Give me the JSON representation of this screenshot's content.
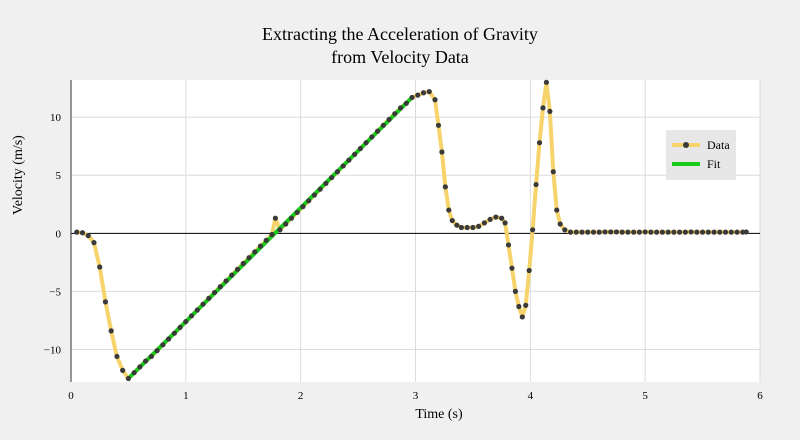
{
  "chart_data": {
    "type": "line",
    "title": [
      "Extracting the Acceleration of Gravity",
      "from Velocity Data"
    ],
    "xlabel": "Time (s)",
    "ylabel": "Velocity (m/s)",
    "xlim": [
      0,
      6
    ],
    "ylim": [
      -12.8,
      13.2
    ],
    "xticks": [
      0,
      1,
      2,
      3,
      4,
      5,
      6
    ],
    "yticks": [
      -10,
      -5,
      0,
      5,
      10
    ],
    "grid": true,
    "legend": {
      "position": "top-right"
    },
    "colors": {
      "background": "#f0f0f0",
      "plot_background": "#ffffff",
      "grid": "#dcdcdc",
      "data_line": "#f7d36b",
      "data_marker": "#3a3a3a",
      "fit_line": "#19cc19",
      "zero_line": "#000000"
    },
    "series": [
      {
        "name": "Data",
        "style": "line+markers",
        "x": [
          0.05,
          0.1,
          0.15,
          0.2,
          0.25,
          0.3,
          0.35,
          0.4,
          0.45,
          0.5,
          0.55,
          0.6,
          0.65,
          0.7,
          0.75,
          0.8,
          0.85,
          0.9,
          0.95,
          1.0,
          1.05,
          1.1,
          1.15,
          1.2,
          1.25,
          1.3,
          1.35,
          1.4,
          1.45,
          1.5,
          1.55,
          1.6,
          1.65,
          1.7,
          1.75,
          1.78,
          1.82,
          1.87,
          1.92,
          1.97,
          2.02,
          2.07,
          2.12,
          2.17,
          2.22,
          2.27,
          2.32,
          2.37,
          2.42,
          2.47,
          2.52,
          2.57,
          2.62,
          2.67,
          2.72,
          2.77,
          2.82,
          2.87,
          2.92,
          2.97,
          3.02,
          3.07,
          3.12,
          3.17,
          3.2,
          3.23,
          3.26,
          3.29,
          3.32,
          3.36,
          3.4,
          3.45,
          3.5,
          3.55,
          3.6,
          3.65,
          3.7,
          3.75,
          3.78,
          3.81,
          3.84,
          3.87,
          3.9,
          3.93,
          3.96,
          3.99,
          4.02,
          4.05,
          4.08,
          4.11,
          4.14,
          4.17,
          4.2,
          4.23,
          4.26,
          4.3,
          4.35,
          4.4,
          4.45,
          4.5,
          4.55,
          4.6,
          4.65,
          4.7,
          4.75,
          4.8,
          4.85,
          4.9,
          4.95,
          5.0,
          5.05,
          5.1,
          5.15,
          5.2,
          5.25,
          5.3,
          5.35,
          5.4,
          5.45,
          5.5,
          5.55,
          5.6,
          5.65,
          5.7,
          5.75,
          5.8,
          5.85,
          5.88
        ],
        "y": [
          0.1,
          0.05,
          -0.2,
          -0.8,
          -2.9,
          -5.9,
          -8.4,
          -10.6,
          -11.8,
          -12.5,
          -12.0,
          -11.5,
          -11.0,
          -10.6,
          -10.1,
          -9.6,
          -9.1,
          -8.6,
          -8.1,
          -7.6,
          -7.1,
          -6.6,
          -6.1,
          -5.6,
          -5.1,
          -4.6,
          -4.1,
          -3.6,
          -3.1,
          -2.6,
          -2.1,
          -1.6,
          -1.1,
          -0.6,
          -0.1,
          1.3,
          0.3,
          0.8,
          1.3,
          1.8,
          2.3,
          2.8,
          3.3,
          3.8,
          4.3,
          4.8,
          5.3,
          5.8,
          6.3,
          6.8,
          7.3,
          7.8,
          8.3,
          8.8,
          9.3,
          9.8,
          10.3,
          10.8,
          11.2,
          11.7,
          11.9,
          12.1,
          12.2,
          11.5,
          9.3,
          7.0,
          4.0,
          2.0,
          1.1,
          0.7,
          0.5,
          0.5,
          0.5,
          0.6,
          0.9,
          1.2,
          1.4,
          1.3,
          0.9,
          -1.0,
          -3.0,
          -5.0,
          -6.3,
          -7.2,
          -6.2,
          -3.2,
          0.3,
          4.2,
          7.8,
          10.8,
          13.0,
          10.5,
          5.3,
          2.0,
          0.8,
          0.3,
          0.1,
          0.1,
          0.1,
          0.1,
          0.1,
          0.1,
          0.12,
          0.12,
          0.12,
          0.1,
          0.1,
          0.1,
          0.1,
          0.12,
          0.1,
          0.1,
          0.1,
          0.1,
          0.1,
          0.1,
          0.1,
          0.12,
          0.1,
          0.1,
          0.1,
          0.1,
          0.1,
          0.1,
          0.1,
          0.1,
          0.1,
          0.12
        ]
      },
      {
        "name": "Fit",
        "style": "line",
        "x": [
          0.52,
          2.97
        ],
        "y": [
          -12.3,
          11.7
        ]
      }
    ]
  }
}
